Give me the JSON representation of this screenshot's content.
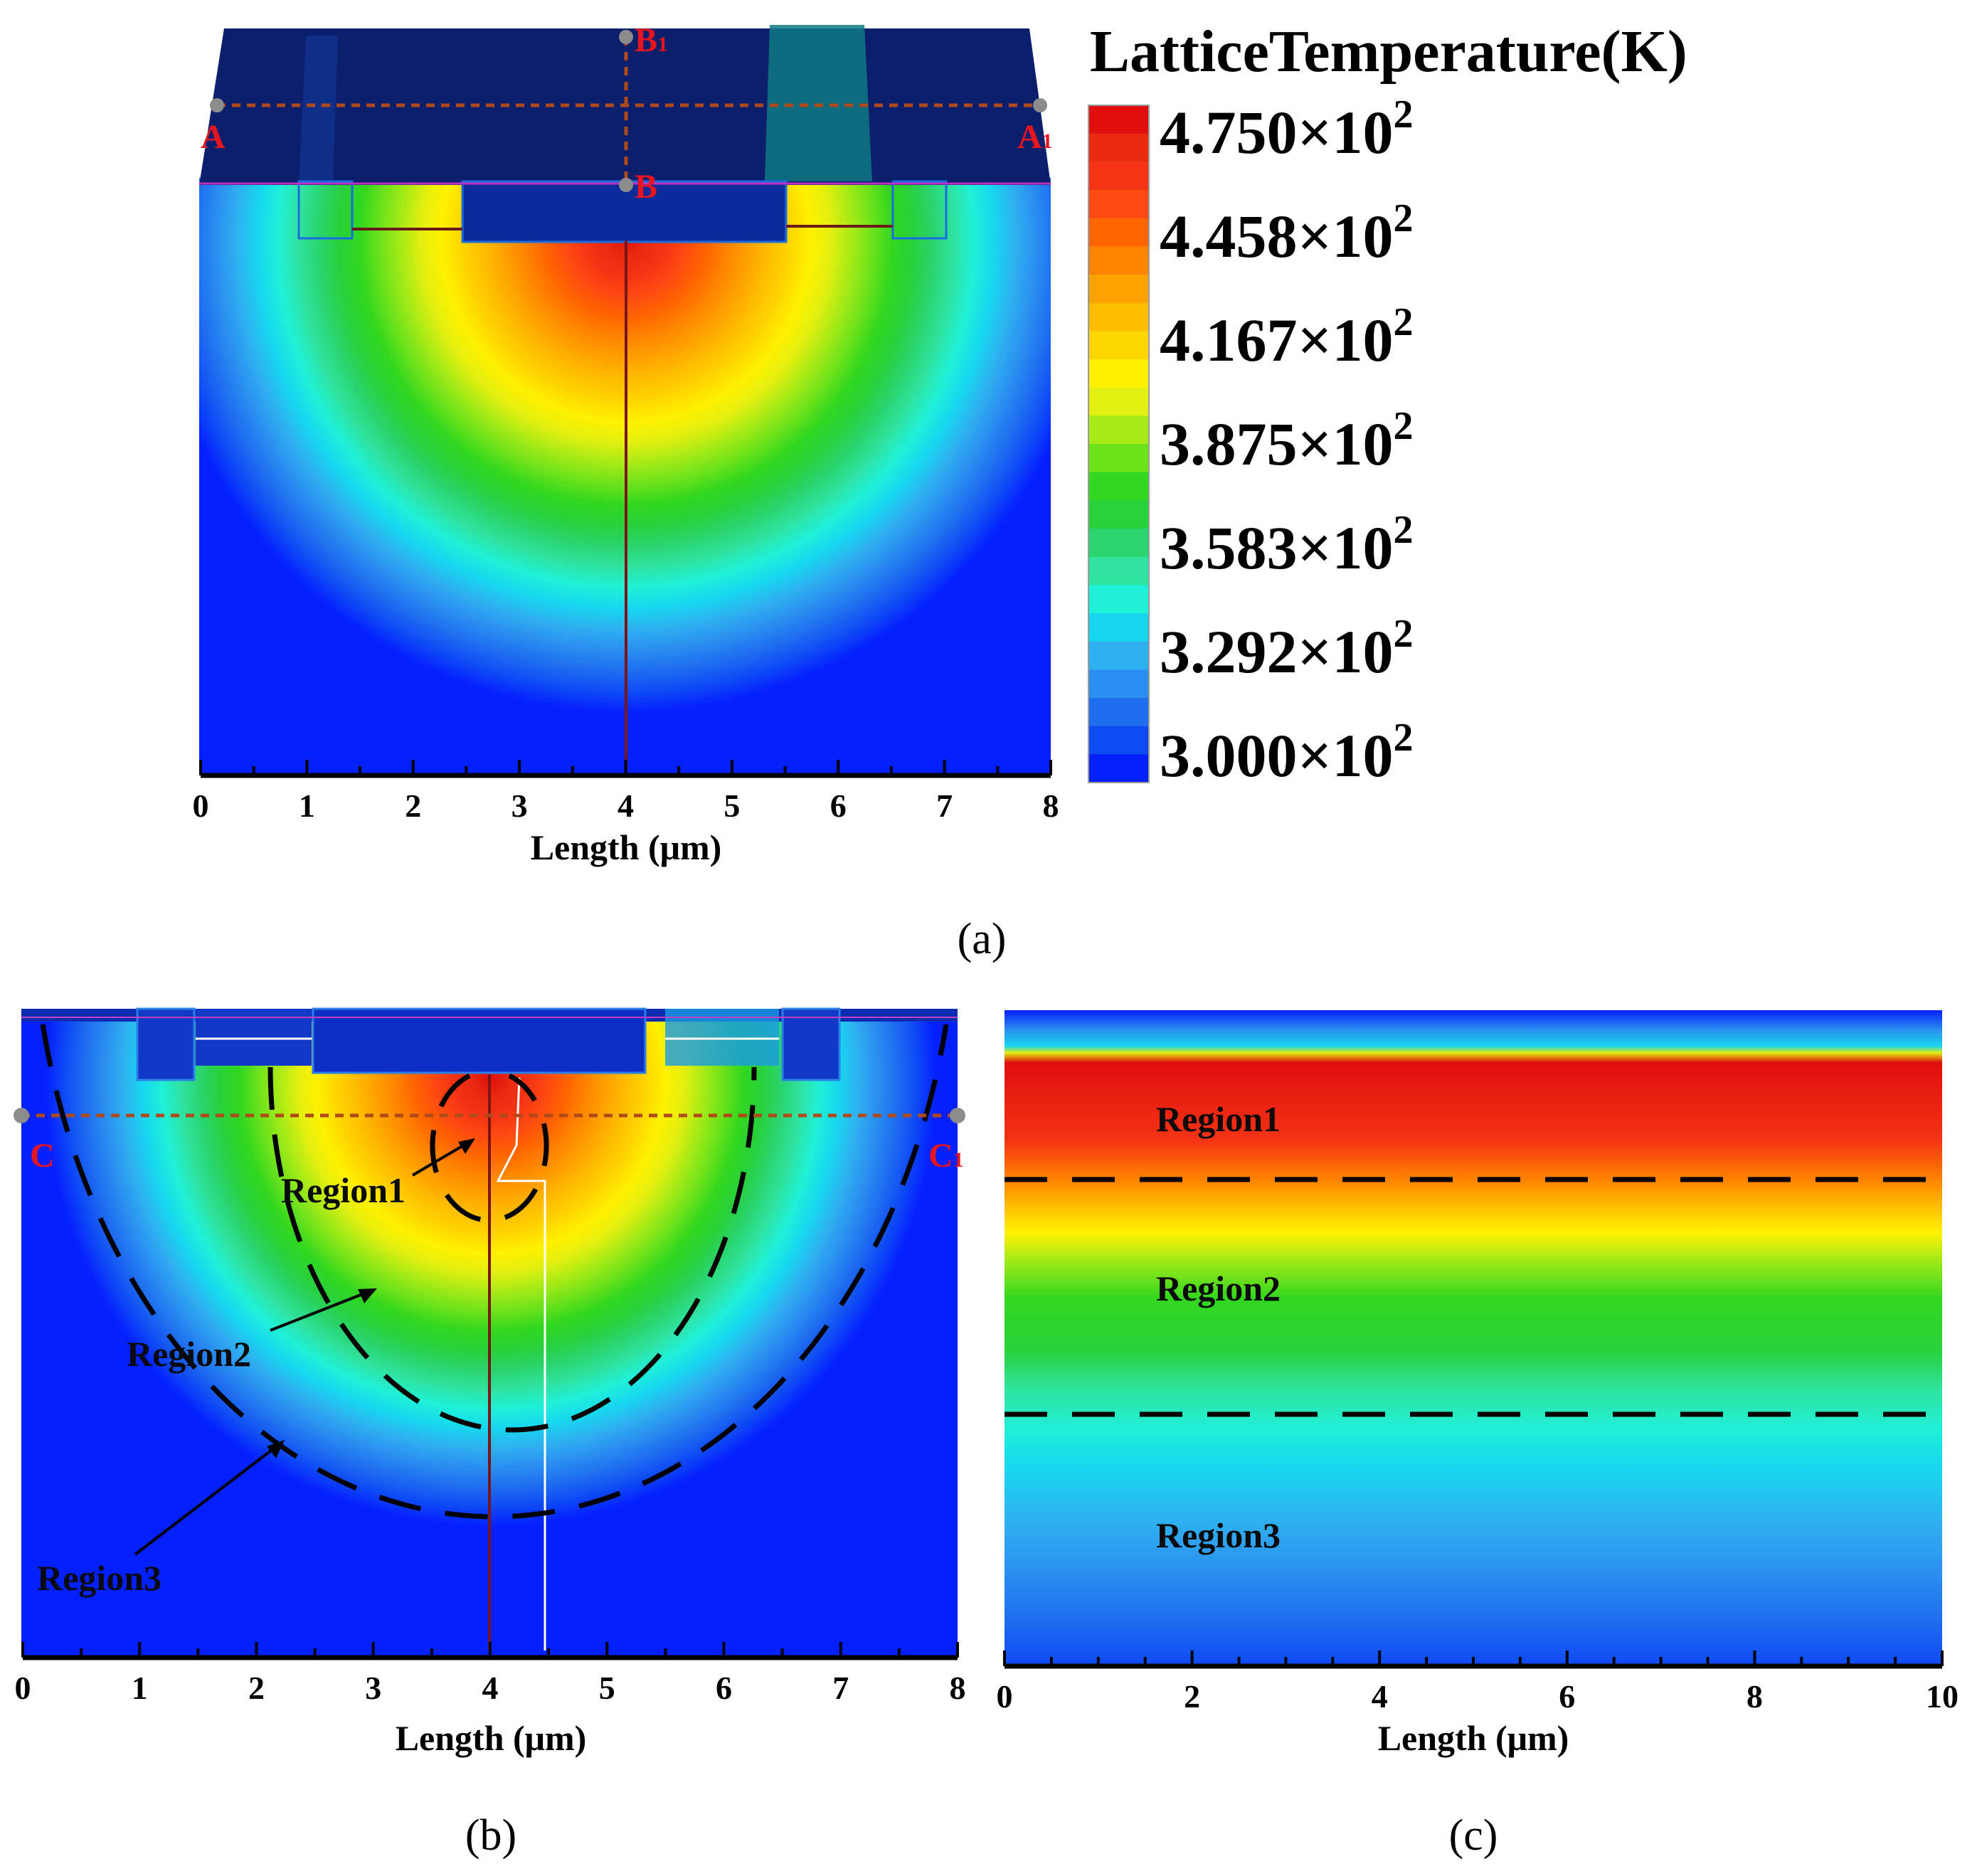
{
  "colorbar": {
    "title": "LatticeTemperature(K)",
    "ticks": [
      "4.750×10",
      "4.458×10",
      "4.167×10",
      "3.875×10",
      "3.583×10",
      "3.292×10",
      "3.000×10"
    ],
    "tick_exponent": "2",
    "min": 300,
    "max": 475,
    "levels": 24,
    "colors": [
      "#0520ff",
      "#0f4bf5",
      "#1f6ef0",
      "#2a8ff0",
      "#2fb0f0",
      "#17d7ef",
      "#1ff0d8",
      "#2fe3a0",
      "#2ad46e",
      "#28d13a",
      "#32d71f",
      "#6ee21b",
      "#a7ea17",
      "#e3ef10",
      "#fff100",
      "#ffd500",
      "#ffbd00",
      "#ffa100",
      "#ff8500",
      "#ff6500",
      "#ff4a12",
      "#f43414",
      "#e82a10",
      "#e00e0e"
    ]
  },
  "panels": {
    "a": {
      "label": "(a)"
    },
    "b": {
      "label": "(b)"
    },
    "c": {
      "label": "(c)"
    }
  },
  "chart_data": [
    {
      "type": "heatmap",
      "panel": "(a)",
      "xlabel": "Length (μm)",
      "xlim": [
        0,
        8
      ],
      "xticks": [
        "0",
        "1",
        "2",
        "3",
        "4",
        "5",
        "6",
        "7",
        "8"
      ],
      "quantity": "Lattice temperature (K)",
      "temperature_range": [
        300,
        475
      ],
      "hotspot_x": 4.0,
      "hotspot_peak": 475,
      "points": [
        {
          "label": "A",
          "sub": ""
        },
        {
          "label": "A",
          "sub": "1"
        },
        {
          "label": "B",
          "sub": "1"
        },
        {
          "label": "B",
          "sub": ""
        }
      ],
      "cutlines": [
        "A–A1 (horizontal)",
        "B–B1 (vertical)"
      ]
    },
    {
      "type": "heatmap",
      "panel": "(b)",
      "xlabel": "Length (μm)",
      "xlim": [
        0,
        8
      ],
      "xticks": [
        "0",
        "1",
        "2",
        "3",
        "4",
        "5",
        "6",
        "7",
        "8"
      ],
      "hotspot_x": 4.0,
      "points": [
        {
          "label": "C",
          "sub": ""
        },
        {
          "label": "C",
          "sub": "1"
        }
      ],
      "regions": [
        "Region1",
        "Region2",
        "Region3"
      ]
    },
    {
      "type": "heatmap",
      "panel": "(c)",
      "xlabel": "Length (μm)",
      "xlim": [
        0,
        10
      ],
      "xticks": [
        "0",
        "2",
        "4",
        "6",
        "8",
        "10"
      ],
      "regions": [
        "Region1",
        "Region2",
        "Region3"
      ]
    }
  ]
}
